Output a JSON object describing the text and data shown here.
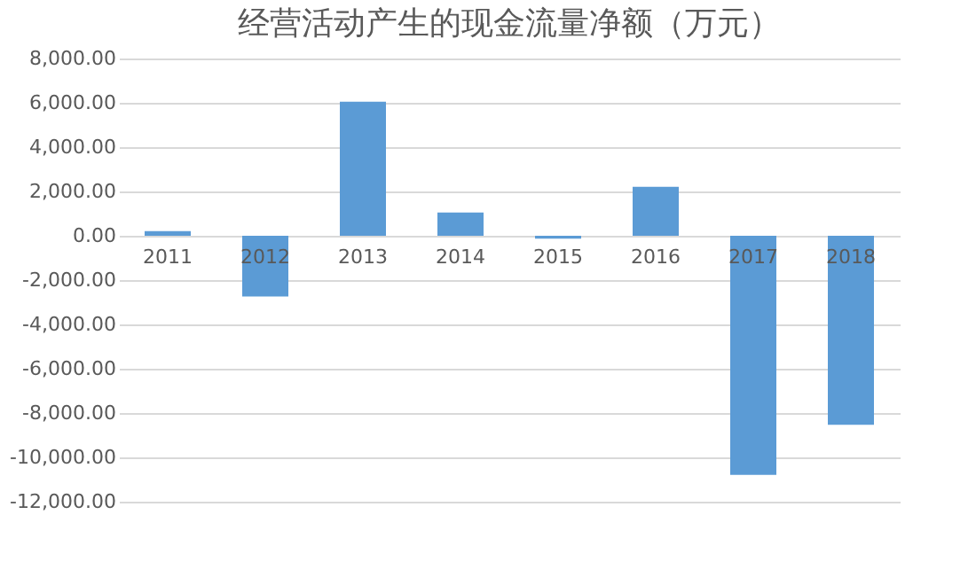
{
  "chart_data": {
    "type": "bar",
    "title": "经营活动产生的现金流量净额（万元）",
    "categories": [
      "2011",
      "2012",
      "2013",
      "2014",
      "2015",
      "2016",
      "2017",
      "2018"
    ],
    "values": [
      210,
      -2740,
      6050,
      1050,
      -130,
      2210,
      -10790,
      -8530
    ],
    "color": "#5b9bd5",
    "ylim": [
      -12000,
      8000
    ],
    "yticks": [
      {
        "value": -12000,
        "label": "-12,000.00"
      },
      {
        "value": -10000,
        "label": "-10,000.00"
      },
      {
        "value": -8000,
        "label": "-8,000.00"
      },
      {
        "value": -6000,
        "label": "-6,000.00"
      },
      {
        "value": -4000,
        "label": "-4,000.00"
      },
      {
        "value": -2000,
        "label": "-2,000.00"
      },
      {
        "value": 0,
        "label": "0.00"
      },
      {
        "value": 2000,
        "label": "2,000.00"
      },
      {
        "value": 4000,
        "label": "4,000.00"
      },
      {
        "value": 6000,
        "label": "6,000.00"
      },
      {
        "value": 8000,
        "label": "8,000.00"
      }
    ],
    "grid": "y"
  }
}
